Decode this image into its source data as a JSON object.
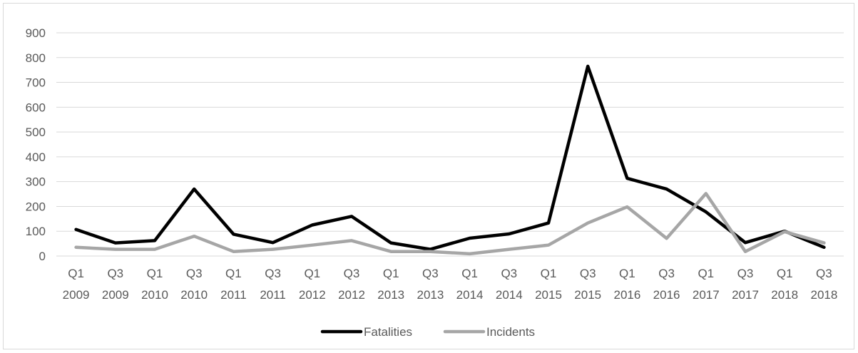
{
  "chart_data": {
    "type": "line",
    "categories": [
      [
        "Q1",
        "2009"
      ],
      [
        "Q3",
        "2009"
      ],
      [
        "Q1",
        "2010"
      ],
      [
        "Q3",
        "2010"
      ],
      [
        "Q1",
        "2011"
      ],
      [
        "Q3",
        "2011"
      ],
      [
        "Q1",
        "2012"
      ],
      [
        "Q3",
        "2012"
      ],
      [
        "Q1",
        "2013"
      ],
      [
        "Q3",
        "2013"
      ],
      [
        "Q1",
        "2014"
      ],
      [
        "Q3",
        "2014"
      ],
      [
        "Q1",
        "2015"
      ],
      [
        "Q3",
        "2015"
      ],
      [
        "Q1",
        "2016"
      ],
      [
        "Q3",
        "2016"
      ],
      [
        "Q1",
        "2017"
      ],
      [
        "Q3",
        "2017"
      ],
      [
        "Q1",
        "2018"
      ],
      [
        "Q3",
        "2018"
      ]
    ],
    "series": [
      {
        "name": "Fatalities",
        "color": "#000000",
        "values": [
          107,
          53,
          62,
          270,
          88,
          54,
          125,
          160,
          53,
          27,
          72,
          89,
          133,
          765,
          313,
          270,
          178,
          54,
          100,
          35
        ]
      },
      {
        "name": "Incidents",
        "color": "#a6a6a6",
        "values": [
          35,
          27,
          27,
          80,
          18,
          27,
          44,
          62,
          18,
          18,
          9,
          27,
          44,
          133,
          198,
          71,
          252,
          18,
          98,
          53
        ]
      }
    ],
    "yticks": [
      0,
      100,
      200,
      300,
      400,
      500,
      600,
      700,
      800,
      900
    ],
    "ylim": [
      0,
      900
    ],
    "grid": true,
    "legend_position": "bottom",
    "title": "",
    "xlabel": "",
    "ylabel": ""
  }
}
